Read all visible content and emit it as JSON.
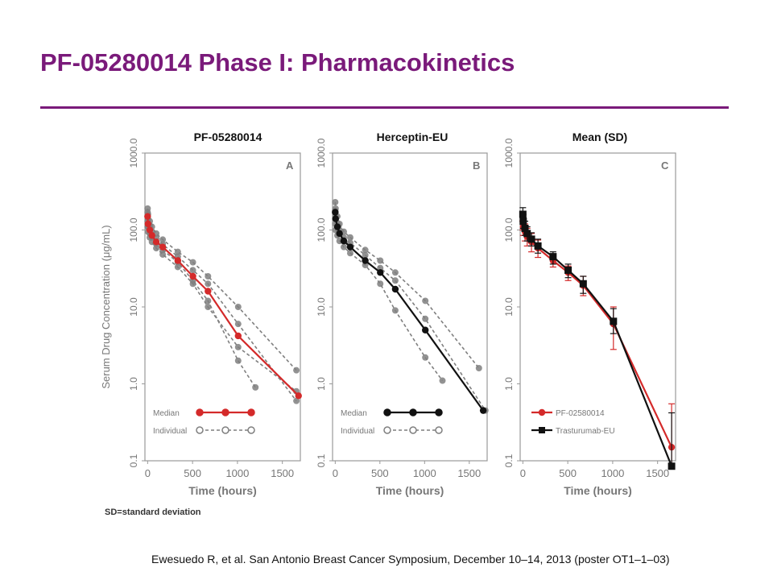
{
  "slide": {
    "title": "PF-05280014 Phase I: Pharmacokinetics",
    "footnote": "Ewesuedo R, et al. San Antonio Breast Cancer Symposium, December 10–14, 2013 (poster OT1–1–03)",
    "sd_note": "SD=standard deviation",
    "title_color": "#7a1a7a"
  },
  "chart_data": [
    {
      "type": "line",
      "heading": "PF-05280014",
      "panel_letter": "A",
      "xlabel": "Time (hours)",
      "ylabel": "Serum Drug Concentration (μg/mL)",
      "y_scale": "log",
      "xlim": [
        -30,
        1700
      ],
      "ylim": [
        0.1,
        1000
      ],
      "x_ticks": [
        "0",
        "500",
        "1000",
        "1500"
      ],
      "y_ticks": [
        "0.1",
        "1.0",
        "10.0",
        "100.0",
        "1000.0"
      ],
      "legend_position": "bottom-left",
      "series": [
        {
          "name": "Median",
          "color": "#d42a2a",
          "style": "solid",
          "x": [
            0,
            4,
            24,
            48,
            96,
            168,
            336,
            504,
            672,
            1008,
            1680
          ],
          "y": [
            150,
            120,
            100,
            85,
            70,
            60,
            40,
            25,
            16,
            4.2,
            0.7
          ]
        },
        {
          "name": "Individual",
          "color": "#7f7f7f",
          "style": "dashed",
          "x": [
            0,
            4,
            24,
            48,
            96,
            168,
            336,
            504,
            672,
            1008,
            1656
          ],
          "y": [
            190,
            160,
            130,
            110,
            90,
            75,
            52,
            38,
            25,
            10,
            1.5
          ]
        },
        {
          "name": "Individual",
          "color": "#7f7f7f",
          "style": "dashed",
          "x": [
            0,
            4,
            24,
            48,
            96,
            168,
            336,
            504,
            672,
            1008,
            1656
          ],
          "y": [
            110,
            95,
            80,
            70,
            58,
            48,
            33,
            20,
            10,
            3,
            0.8
          ]
        },
        {
          "name": "Individual",
          "color": "#7f7f7f",
          "style": "dashed",
          "x": [
            0,
            4,
            24,
            48,
            96,
            168,
            336,
            504,
            672,
            1008,
            1656
          ],
          "y": [
            170,
            140,
            115,
            95,
            78,
            65,
            45,
            30,
            20,
            6,
            0.6
          ]
        },
        {
          "name": "Individual",
          "color": "#7f7f7f",
          "style": "dashed",
          "x": [
            0,
            4,
            24,
            48,
            96,
            168,
            336,
            504,
            672,
            1008,
            1200
          ],
          "y": [
            130,
            110,
            90,
            80,
            66,
            55,
            38,
            22,
            12,
            2,
            0.9
          ]
        }
      ]
    },
    {
      "type": "line",
      "heading": "Herceptin-EU",
      "panel_letter": "B",
      "xlabel": "Time (hours)",
      "ylabel": "",
      "y_scale": "log",
      "xlim": [
        -30,
        1700
      ],
      "ylim": [
        0.1,
        1000
      ],
      "x_ticks": [
        "0",
        "500",
        "1000",
        "1500"
      ],
      "y_ticks": [
        "0.1",
        "1.0",
        "10.0",
        "100.0",
        "1000.0"
      ],
      "legend_position": "bottom-left",
      "series": [
        {
          "name": "Median",
          "color": "#111111",
          "style": "solid",
          "x": [
            0,
            4,
            24,
            48,
            96,
            168,
            336,
            504,
            672,
            1008,
            1656
          ],
          "y": [
            170,
            140,
            110,
            90,
            72,
            60,
            40,
            28,
            17,
            5,
            0.45
          ]
        },
        {
          "name": "Individual",
          "color": "#7f7f7f",
          "style": "dashed",
          "x": [
            0,
            4,
            24,
            48,
            96,
            168,
            336,
            504,
            672,
            1008,
            1608
          ],
          "y": [
            230,
            190,
            150,
            120,
            95,
            80,
            55,
            40,
            28,
            12,
            1.6
          ]
        },
        {
          "name": "Individual",
          "color": "#7f7f7f",
          "style": "dashed",
          "x": [
            0,
            4,
            24,
            48,
            96,
            168,
            336,
            504,
            672,
            1008,
            1200
          ],
          "y": [
            120,
            100,
            85,
            72,
            60,
            50,
            35,
            20,
            9,
            2.2,
            1.1
          ]
        },
        {
          "name": "Individual",
          "color": "#7f7f7f",
          "style": "dashed",
          "x": [
            0,
            4,
            24,
            48,
            96,
            168,
            336,
            504,
            672,
            1008,
            1680
          ],
          "y": [
            180,
            150,
            120,
            100,
            80,
            68,
            47,
            32,
            22,
            7,
            0.45
          ]
        }
      ]
    },
    {
      "type": "line",
      "heading": "Mean (SD)",
      "panel_letter": "C",
      "xlabel": "Time (hours)",
      "ylabel": "",
      "y_scale": "log",
      "xlim": [
        -30,
        1700
      ],
      "ylim": [
        0.1,
        1000
      ],
      "x_ticks": [
        "0",
        "500",
        "1000",
        "1500"
      ],
      "y_ticks": [
        "0.1",
        "1.0",
        "10.0",
        "100.0",
        "1000.0"
      ],
      "legend_position": "bottom-left",
      "series": [
        {
          "name": "PF-02580014",
          "color": "#d42a2a",
          "marker": "circle",
          "x": [
            0,
            4,
            24,
            48,
            96,
            168,
            336,
            504,
            672,
            1008,
            1656
          ],
          "y": [
            130,
            110,
            95,
            82,
            70,
            58,
            40,
            28,
            19,
            6.0,
            0.15
          ],
          "err_low": [
            100,
            85,
            72,
            62,
            52,
            44,
            33,
            22,
            14,
            2.8,
            0.09
          ],
          "err_high": [
            170,
            140,
            120,
            105,
            90,
            74,
            48,
            34,
            25,
            10,
            0.55
          ]
        },
        {
          "name": "Trasturumab-EU",
          "color": "#111111",
          "marker": "square",
          "x": [
            0,
            4,
            24,
            48,
            96,
            168,
            336,
            504,
            672,
            1008,
            1656
          ],
          "y": [
            160,
            130,
            105,
            90,
            76,
            62,
            45,
            30,
            20,
            6.5,
            0.085
          ],
          "err_low": [
            130,
            105,
            85,
            72,
            62,
            50,
            36,
            24,
            15,
            4.5,
            0.085
          ],
          "err_high": [
            195,
            160,
            130,
            110,
            92,
            76,
            52,
            36,
            25,
            9.5,
            0.42
          ]
        }
      ]
    }
  ]
}
